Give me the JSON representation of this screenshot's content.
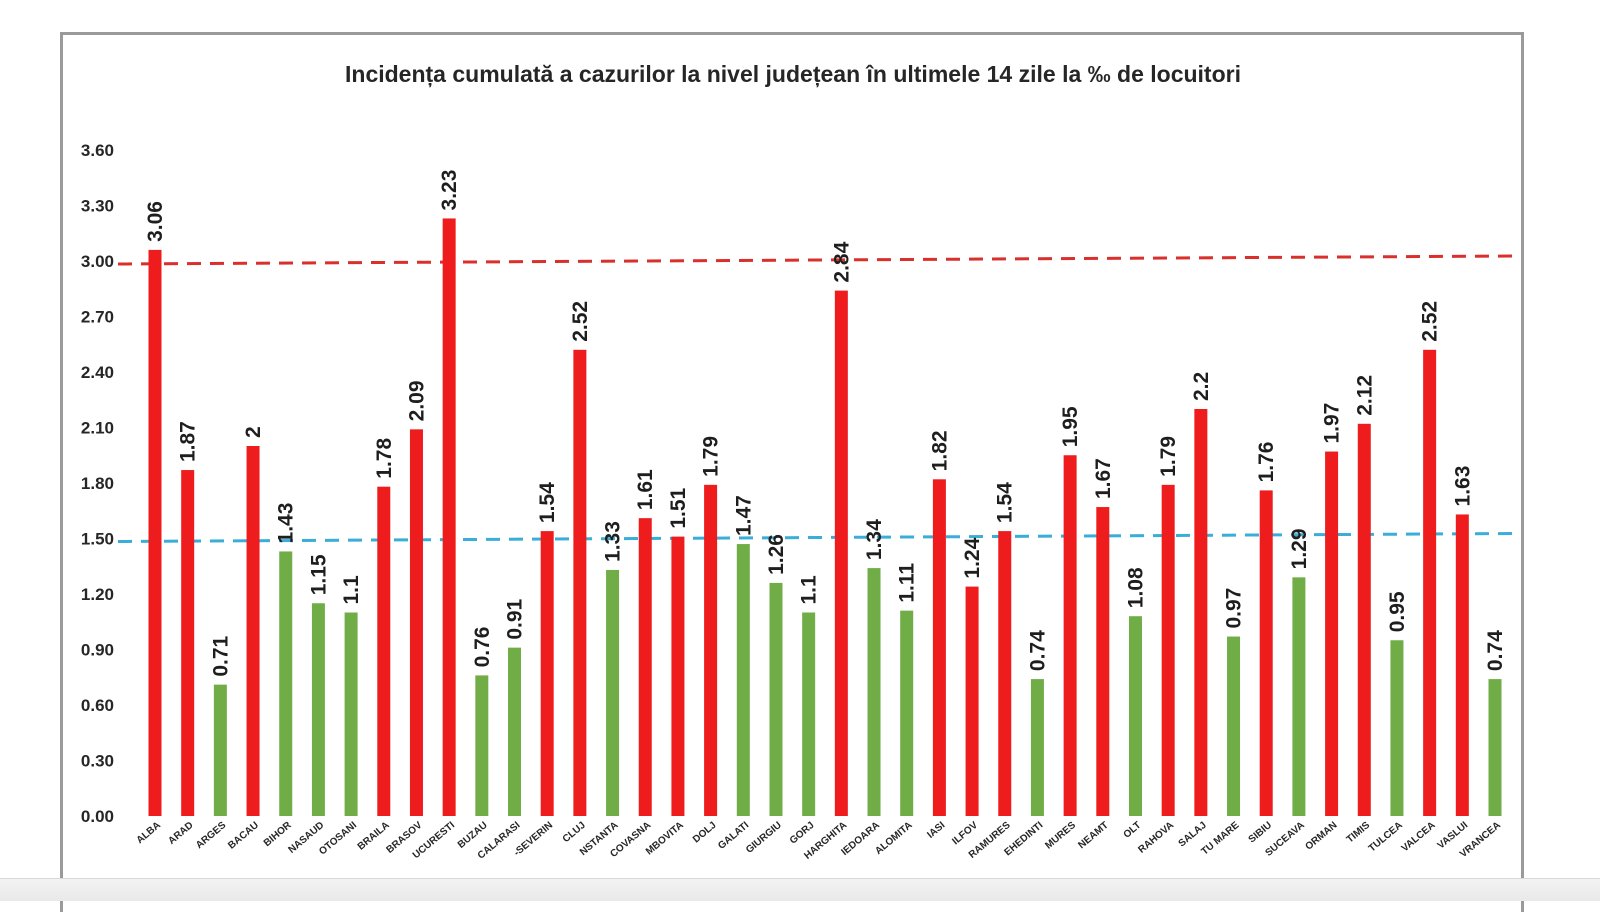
{
  "chart_data": {
    "type": "bar",
    "title": "Incidența cumulată a cazurilor la nivel județean în ultimele 14 zile la ‰ de locuitori",
    "xlabel": "",
    "ylabel": "",
    "ylim": [
      0,
      3.6
    ],
    "yticks": [
      "0.00",
      "0.30",
      "0.60",
      "0.90",
      "1.20",
      "1.50",
      "1.80",
      "2.10",
      "2.40",
      "2.70",
      "3.00",
      "3.30",
      "3.60"
    ],
    "grid": false,
    "legend": "none",
    "threshold_lines": [
      {
        "value": 3.0,
        "color": "#d9302c",
        "style": "dashed"
      },
      {
        "value": 1.5,
        "color": "#3aaed8",
        "style": "dashed"
      }
    ],
    "colors": {
      "above": "#ee1c1c",
      "below": "#70ad47"
    },
    "categories": [
      "ALBA",
      "ARAD",
      "ARGES",
      "BACAU",
      "BIHOR",
      "NASAUD",
      "OTOSANI",
      "BRAILA",
      "BRASOV",
      "UCURESTI",
      "BUZAU",
      "CALARASI",
      "-SEVERIN",
      "CLUJ",
      "NSTANTA",
      "COVASNA",
      "MBOVITA",
      "DOLJ",
      "GALATI",
      "GIURGIU",
      "GORJ",
      "HARGHITA",
      "IEDOARA",
      "ALOMITA",
      "IASI",
      "ILFOV",
      "RAMURES",
      "EHEDINTI",
      "MURES",
      "NEAMT",
      "OLT",
      "RAHOVA",
      "SALAJ",
      "TU MARE",
      "SIBIU",
      "SUCEAVA",
      "ORMAN",
      "TIMIS",
      "TULCEA",
      "VALCEA",
      "VASLUI",
      "VRANCEA"
    ],
    "values": [
      3.06,
      1.87,
      0.71,
      2,
      1.43,
      1.15,
      1.1,
      1.78,
      2.09,
      3.23,
      0.76,
      0.91,
      1.54,
      2.52,
      1.33,
      1.61,
      1.51,
      1.79,
      1.47,
      1.26,
      1.1,
      2.84,
      1.34,
      1.11,
      1.82,
      1.24,
      1.54,
      0.74,
      1.95,
      1.67,
      1.08,
      1.79,
      2.2,
      0.97,
      1.76,
      1.29,
      1.97,
      2.12,
      0.95,
      2.52,
      1.63,
      0.74
    ],
    "data_labels": [
      "3.06",
      "1.87",
      "0.71",
      "2",
      "1.43",
      "1.15",
      "1.1",
      "1.78",
      "2.09",
      "3.23",
      "0.76",
      "0.91",
      "1.54",
      "2.52",
      "1.33",
      "1.61",
      "1.51",
      "1.79",
      "1.47",
      "1.26",
      "1.1",
      "2.84",
      "1.34",
      "1.11",
      "1.82",
      "1.24",
      "1.54",
      "0.74",
      "1.95",
      "1.67",
      "1.08",
      "1.79",
      "2.2",
      "0.97",
      "1.76",
      "1.29",
      "1.97",
      "2.12",
      "0.95",
      "2.52",
      "1.63",
      "0.74"
    ],
    "bar_colors": [
      "above",
      "above",
      "below",
      "above",
      "below",
      "below",
      "below",
      "above",
      "above",
      "above",
      "below",
      "below",
      "above",
      "above",
      "below",
      "above",
      "above",
      "above",
      "below",
      "below",
      "below",
      "above",
      "below",
      "below",
      "above",
      "above",
      "above",
      "below",
      "above",
      "above",
      "below",
      "above",
      "above",
      "below",
      "above",
      "below",
      "above",
      "above",
      "below",
      "above",
      "above",
      "below"
    ]
  }
}
